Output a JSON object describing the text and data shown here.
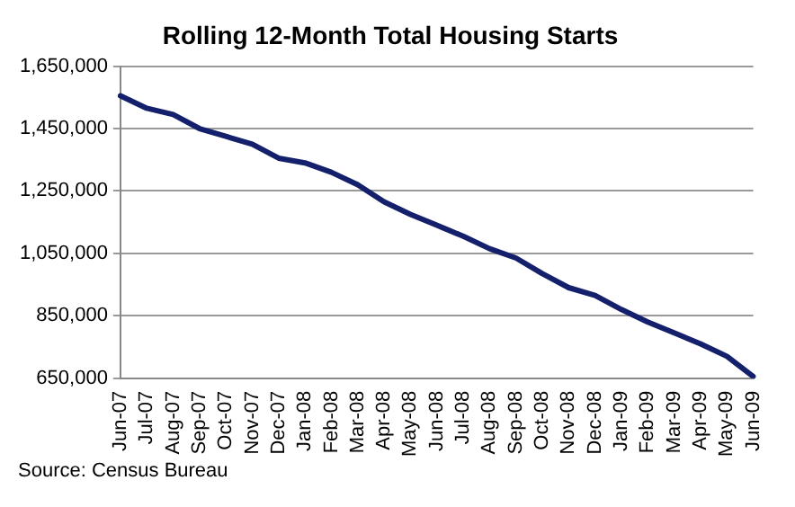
{
  "chart_data": {
    "type": "line",
    "title": "Rolling 12-Month Total Housing Starts",
    "categories": [
      "Jun-07",
      "Jul-07",
      "Aug-07",
      "Sep-07",
      "Oct-07",
      "Nov-07",
      "Dec-07",
      "Jan-08",
      "Feb-08",
      "Mar-08",
      "Apr-08",
      "May-08",
      "Jun-08",
      "Jul-08",
      "Aug-08",
      "Sep-08",
      "Oct-08",
      "Nov-08",
      "Dec-08",
      "Jan-09",
      "Feb-09",
      "Mar-09",
      "Apr-09",
      "May-09",
      "Jun-09"
    ],
    "series": [
      {
        "color": "#14206b",
        "values": [
          1555000,
          1515000,
          1495000,
          1450000,
          1425000,
          1400000,
          1355000,
          1340000,
          1310000,
          1270000,
          1215000,
          1175000,
          1140000,
          1105000,
          1065000,
          1035000,
          985000,
          940000,
          915000,
          870000,
          830000,
          795000,
          760000,
          720000,
          655000
        ]
      }
    ],
    "ylim": [
      650000,
      1650000
    ],
    "yticks": [
      {
        "value": 650000,
        "label": "650,000"
      },
      {
        "value": 850000,
        "label": "850,000"
      },
      {
        "value": 1050000,
        "label": "1,050,000"
      },
      {
        "value": 1250000,
        "label": "1,250,000"
      },
      {
        "value": 1450000,
        "label": "1,450,000"
      },
      {
        "value": 1650000,
        "label": "1,650,000"
      }
    ],
    "grid": "y",
    "legend": false,
    "marker": "none",
    "line_style": "solid",
    "annotations": [
      "Source: Census Bureau"
    ]
  }
}
